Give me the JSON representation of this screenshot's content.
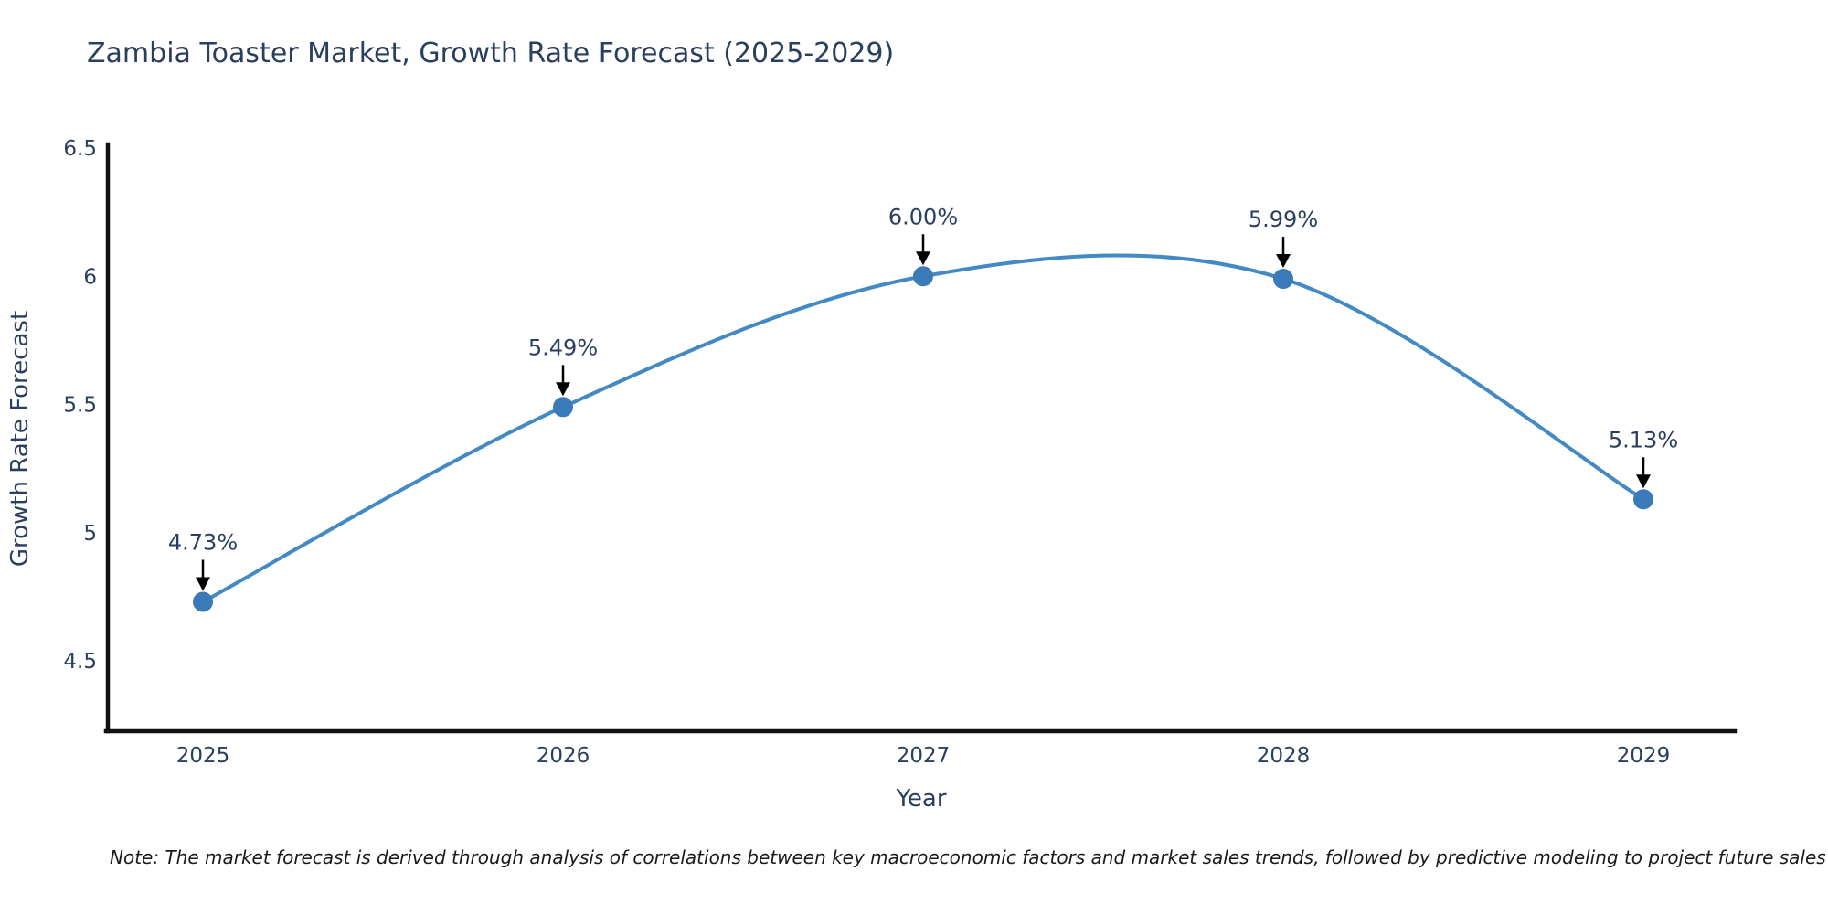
{
  "title": "Zambia Toaster Market, Growth Rate Forecast (2025-2029)",
  "axes": {
    "x_label": "Year",
    "y_label": "Growth Rate Forecast",
    "y_ticks": [
      {
        "label": "6.5",
        "value": 6.5
      },
      {
        "label": "6",
        "value": 6.0
      },
      {
        "label": "5.5",
        "value": 5.5
      },
      {
        "label": "5",
        "value": 5.0
      },
      {
        "label": "4.5",
        "value": 4.5
      }
    ],
    "x_ticks": [
      "2025",
      "2026",
      "2027",
      "2028",
      "2029"
    ]
  },
  "note": "Note: The market forecast is derived through analysis of correlations between key macroeconomic factors and market sales trends, followed by predictive modeling to project future sales",
  "colors": {
    "line": "#4389c4",
    "marker": "#3a7ab8",
    "text": "#2a3f5f",
    "arrow": "#000000",
    "axis": "#111111",
    "background": "#ffffff"
  },
  "chart_data": {
    "type": "line",
    "title": "Zambia Toaster Market, Growth Rate Forecast (2025-2029)",
    "xlabel": "Year",
    "ylabel": "Growth Rate Forecast",
    "x": [
      2025,
      2026,
      2027,
      2028,
      2029
    ],
    "x_labels": [
      "2025",
      "2026",
      "2027",
      "2028",
      "2029"
    ],
    "values": [
      4.73,
      5.49,
      6.0,
      5.99,
      5.13
    ],
    "point_labels": [
      "4.73%",
      "5.49%",
      "6.00%",
      "5.99%",
      "5.13%"
    ],
    "y_tick_values": [
      6.5,
      6.0,
      5.5,
      5.0,
      4.5
    ],
    "ylim": [
      4.23,
      6.51
    ],
    "line_shape": "spline",
    "markers": true,
    "grid": false,
    "legend": "none",
    "annotations": "value labels with down arrows above each point"
  }
}
